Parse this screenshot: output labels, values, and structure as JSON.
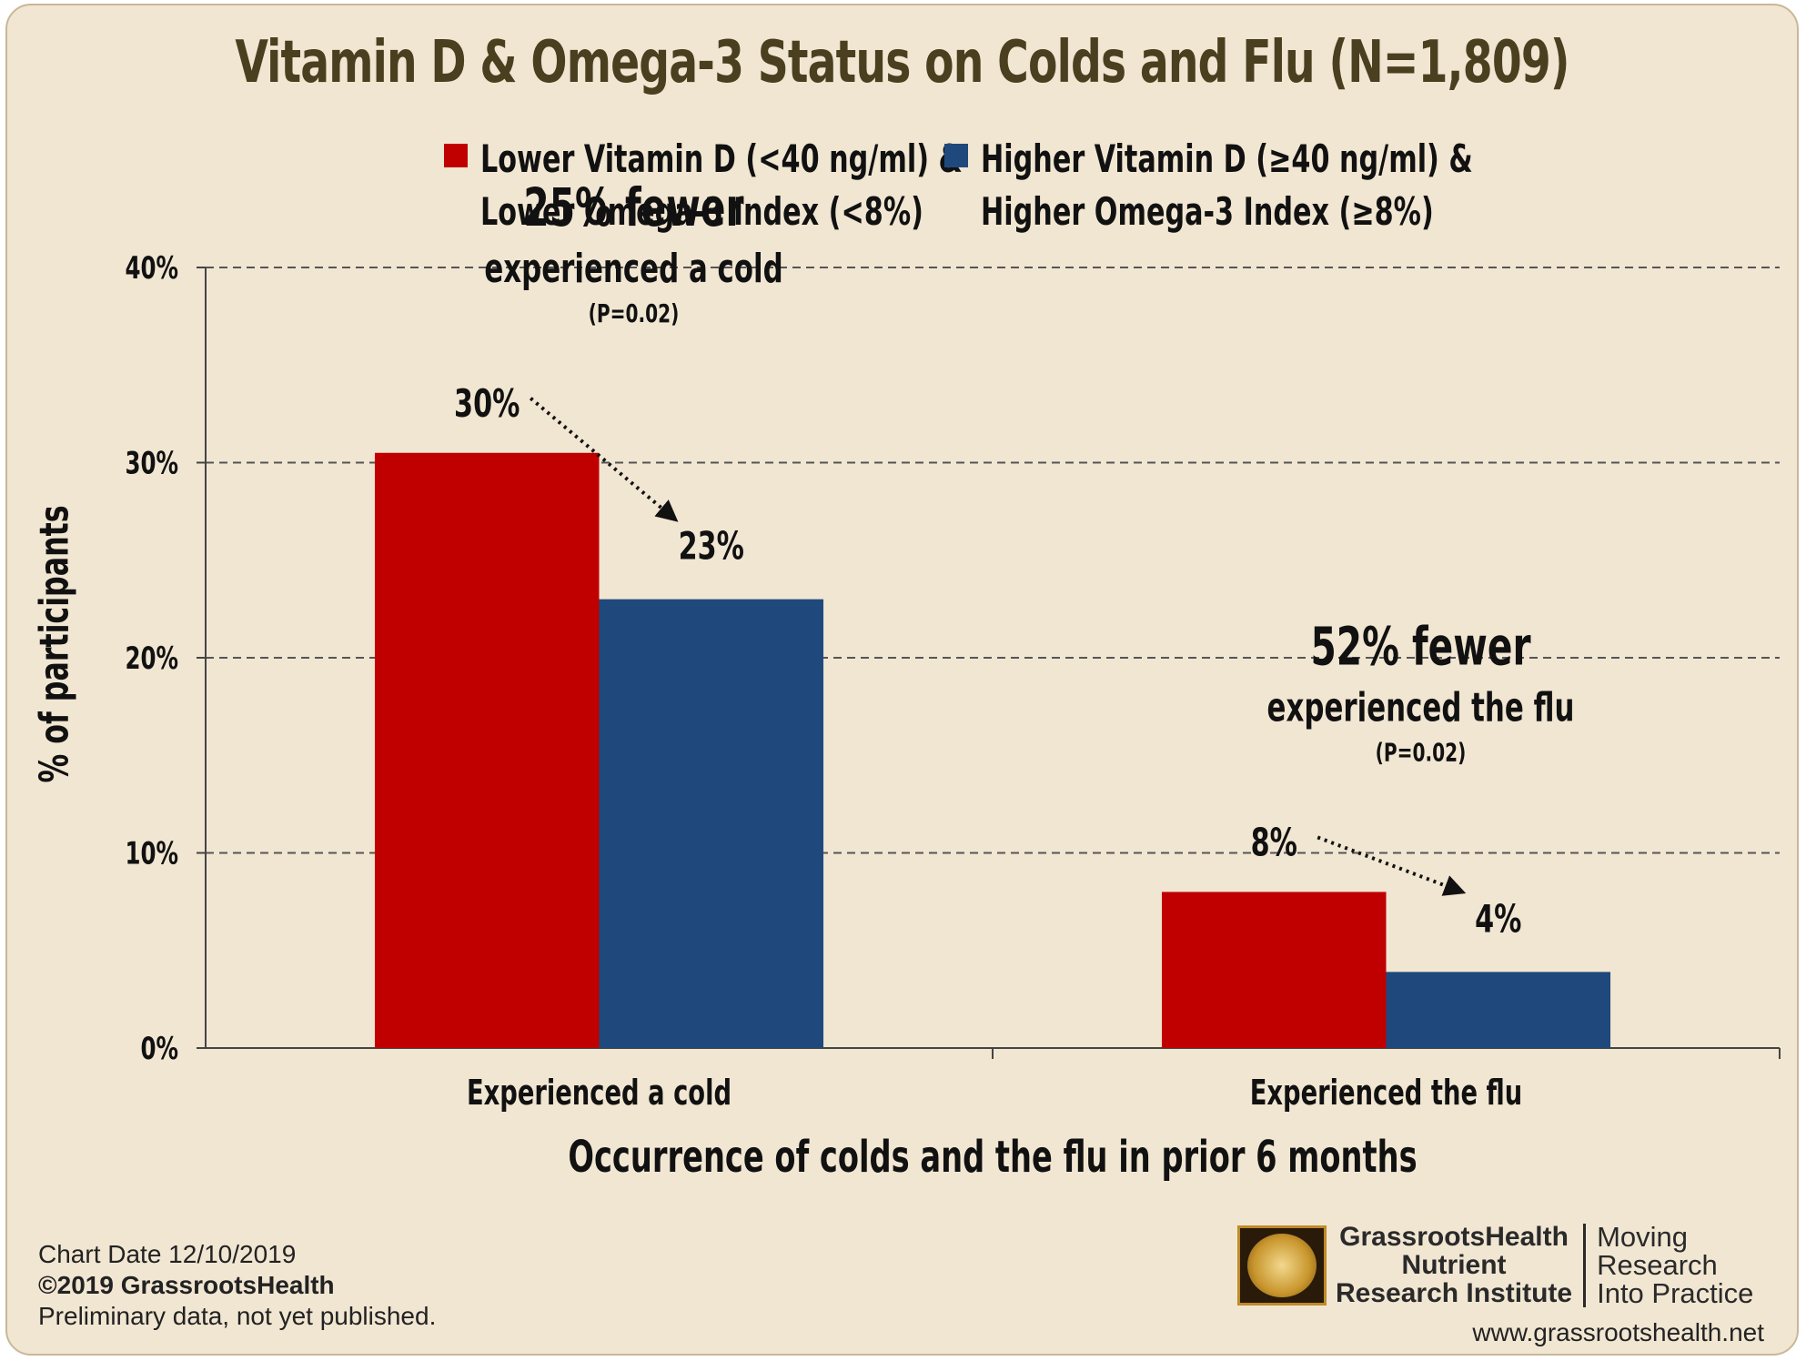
{
  "chart_data": {
    "type": "bar",
    "title": "Vitamin D & Omega-3 Status on Colds and Flu (N=1,809)",
    "xlabel": "Occurrence of colds and the flu in prior 6 months",
    "ylabel": "% of participants",
    "categories": [
      "Experienced a cold",
      "Experienced the flu"
    ],
    "series": [
      {
        "name": "Lower Vitamin D (<40 ng/ml) &\nLower Omega-3 Index (<8%)",
        "color": "#c00000",
        "values": [
          30.5,
          8.0
        ]
      },
      {
        "name": "Higher Vitamin D (≥40 ng/ml) &\nHigher Omega-3 Index (≥8%)",
        "color": "#1f497d",
        "values": [
          23.0,
          3.9
        ]
      }
    ],
    "ylim": [
      0,
      40
    ],
    "yticks": [
      "0%",
      "10%",
      "20%",
      "30%",
      "40%"
    ],
    "ytick_values": [
      0,
      10,
      20,
      30,
      40
    ],
    "grid": true,
    "legend_position": "top",
    "data_labels": [
      {
        "category": 0,
        "series": 0,
        "text": "30%"
      },
      {
        "category": 0,
        "series": 1,
        "text": "23%"
      },
      {
        "category": 1,
        "series": 0,
        "text": "8%"
      },
      {
        "category": 1,
        "series": 1,
        "text": "4%"
      }
    ],
    "annotations": [
      {
        "category": 0,
        "headline": "25% fewer",
        "detail": "experienced a cold",
        "pvalue": "(P=0.02)"
      },
      {
        "category": 1,
        "headline": "52% fewer",
        "detail": "experienced the flu",
        "pvalue": "(P=0.02)"
      }
    ]
  },
  "footer": {
    "chart_date": "Chart Date 12/10/2019",
    "copyright": "©2019 GrassrootsHealth",
    "note": "Preliminary data, not yet published.",
    "org_line1": "GrassrootsHealth",
    "org_line2": "Nutrient",
    "org_line3": "Research Institute",
    "tagline1": "Moving",
    "tagline2": "Research",
    "tagline3": "Into Practice",
    "website": "www.grassrootshealth.net"
  }
}
